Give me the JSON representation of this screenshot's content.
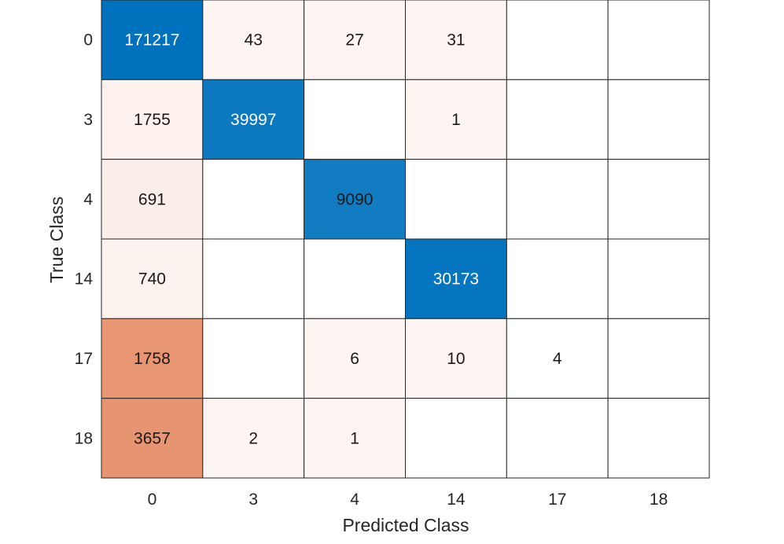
{
  "chart_data": {
    "type": "heatmap",
    "title": "",
    "xlabel": "Predicted Class",
    "ylabel": "True Class",
    "x_categories": [
      "0",
      "3",
      "4",
      "14",
      "17",
      "18"
    ],
    "y_categories": [
      "0",
      "3",
      "4",
      "14",
      "17",
      "18"
    ],
    "values": [
      [
        171217,
        43,
        27,
        31,
        null,
        null
      ],
      [
        1755,
        39997,
        null,
        1,
        null,
        null
      ],
      [
        691,
        null,
        9090,
        null,
        null,
        null
      ],
      [
        740,
        null,
        null,
        30173,
        null,
        null
      ],
      [
        1758,
        null,
        6,
        10,
        4,
        null
      ],
      [
        3657,
        2,
        1,
        null,
        null,
        null
      ]
    ],
    "colors": {
      "diagonal_high": "#0072bd",
      "diagonal_low": "#ffffff",
      "off_diagonal_low": "#fdf5f2",
      "off_diagonal_high": "#d95319",
      "grid_line": "#262626"
    }
  }
}
